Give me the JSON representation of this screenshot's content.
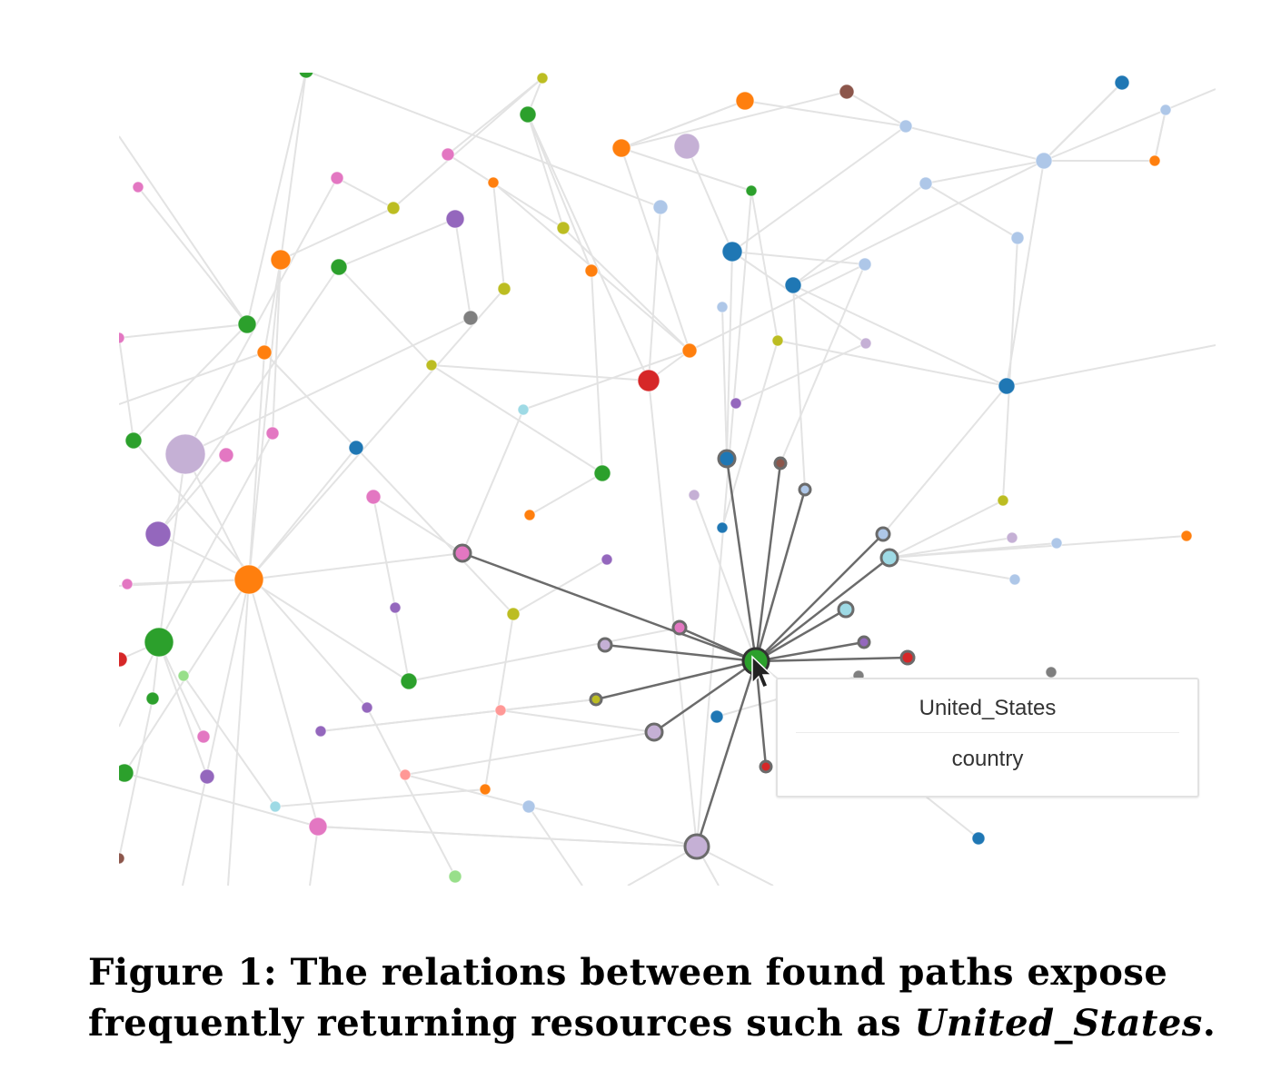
{
  "tooltip": {
    "title": "United_States",
    "subtitle": "country"
  },
  "caption": {
    "label": "Figure 1:",
    "text": "The relations between found paths expose frequently returning resources such as",
    "entity": "United_States",
    "end": "."
  },
  "colors": {
    "edge": "#e3e3e3",
    "highlight_edge": "#6b6b6b",
    "node_stroke": "#6b6b6b",
    "palette": [
      "#2ca02c",
      "#ff7f0e",
      "#1f77b4",
      "#d62728",
      "#9467bd",
      "#e377c2",
      "#bcbd22",
      "#17becf",
      "#8c564b",
      "#7f7f7f",
      "#aec7e8",
      "#c5b0d5",
      "#9edae5",
      "#98df8a",
      "#ff9896",
      "#f7b6d2"
    ]
  },
  "icons": {
    "pointer": "mouse-cursor-icon"
  }
}
